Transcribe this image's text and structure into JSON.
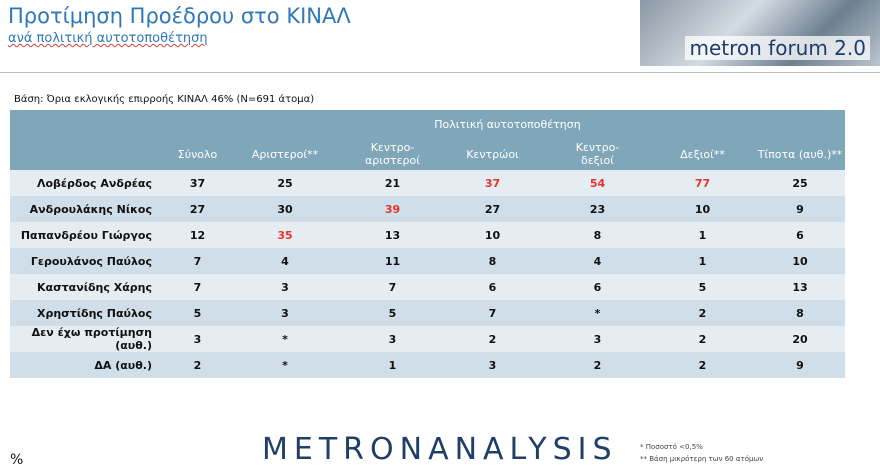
{
  "header": {
    "title": "Προτίμηση Προέδρου στο ΚΙΝΑΛ",
    "subtitle": "ανά πολιτική αυτοτοποθέτηση",
    "logo": "metron forum 2.0"
  },
  "base_note": "Βάση: Όρια εκλογικής επιρροής ΚΙΝΑΛ 46% (Ν=691 άτομα)",
  "table": {
    "group_header": "Πολιτική αυτοτοποθέτηση",
    "highlight_color": "#e8322c",
    "columns": [
      "Σύνολο",
      "Αριστεροί**",
      "Κεντρο-\nαριστεροί",
      "Κεντρώοι",
      "Κεντρο-\nδεξιοί",
      "Δεξιοί**",
      "Τίποτα (αυθ.)**"
    ],
    "rows": [
      {
        "label": "Λοβέρδος Ανδρέας",
        "cells": [
          "37",
          "25",
          "21",
          "37",
          "54",
          "77",
          "25"
        ],
        "highlighted": [
          false,
          false,
          false,
          true,
          true,
          true,
          false
        ]
      },
      {
        "label": "Ανδρουλάκης Νίκος",
        "cells": [
          "27",
          "30",
          "39",
          "27",
          "23",
          "10",
          "9"
        ],
        "highlighted": [
          false,
          false,
          true,
          false,
          false,
          false,
          false
        ]
      },
      {
        "label": "Παπανδρέου Γιώργος",
        "cells": [
          "12",
          "35",
          "13",
          "10",
          "8",
          "1",
          "6"
        ],
        "highlighted": [
          false,
          true,
          false,
          false,
          false,
          false,
          false
        ]
      },
      {
        "label": "Γερουλάνος Παύλος",
        "cells": [
          "7",
          "4",
          "11",
          "8",
          "4",
          "1",
          "10"
        ],
        "highlighted": [
          false,
          false,
          false,
          false,
          false,
          false,
          false
        ]
      },
      {
        "label": "Καστανίδης Χάρης",
        "cells": [
          "7",
          "3",
          "7",
          "6",
          "6",
          "5",
          "13"
        ],
        "highlighted": [
          false,
          false,
          false,
          false,
          false,
          false,
          false
        ]
      },
      {
        "label": "Χρηστίδης Παύλος",
        "cells": [
          "5",
          "3",
          "5",
          "7",
          "*",
          "2",
          "8"
        ],
        "highlighted": [
          false,
          false,
          false,
          false,
          false,
          false,
          false
        ]
      },
      {
        "label": "Δεν έχω προτίμηση (αυθ.)",
        "cells": [
          "3",
          "*",
          "3",
          "2",
          "3",
          "2",
          "20"
        ],
        "highlighted": [
          false,
          false,
          false,
          false,
          false,
          false,
          false
        ]
      },
      {
        "label": "ΔΑ (αυθ.)",
        "cells": [
          "2",
          "*",
          "1",
          "3",
          "2",
          "2",
          "9"
        ],
        "highlighted": [
          false,
          false,
          false,
          false,
          false,
          false,
          false
        ]
      }
    ]
  },
  "footer": {
    "unit": "%",
    "brand": "METRONANALYSIS",
    "notes": [
      "*   Ποσοστό <0,5%",
      "**  Βάση μικρότερη των 60 ατόμων"
    ]
  }
}
